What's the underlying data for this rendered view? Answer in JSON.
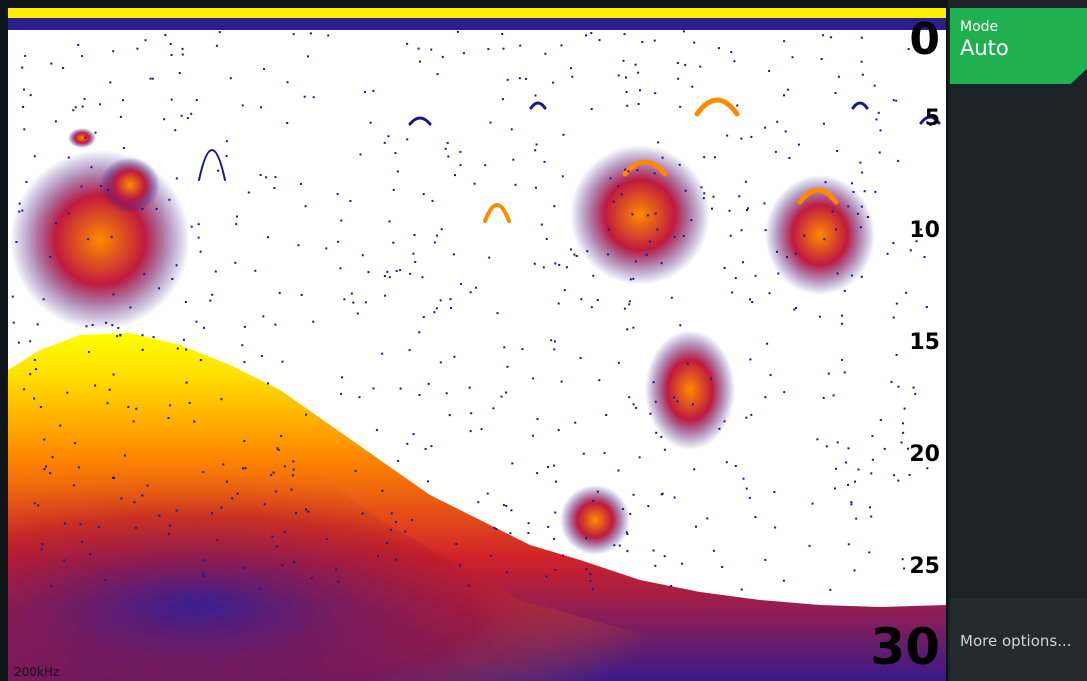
{
  "sonar": {
    "frequency": "200kHz",
    "depth_scale": [
      "0",
      "5",
      "10",
      "15",
      "20",
      "25",
      "30"
    ],
    "colors": {
      "water": "#ffffff",
      "bottom_top": "#ffff00",
      "bottom_mid": "#ff7a00",
      "bottom_deep": "#c4102a",
      "noise": "#1a1590",
      "surface_band": "#ffee00"
    }
  },
  "panel": {
    "mode_label": "Mode",
    "mode_value": "Auto",
    "more_options": "More options..."
  }
}
